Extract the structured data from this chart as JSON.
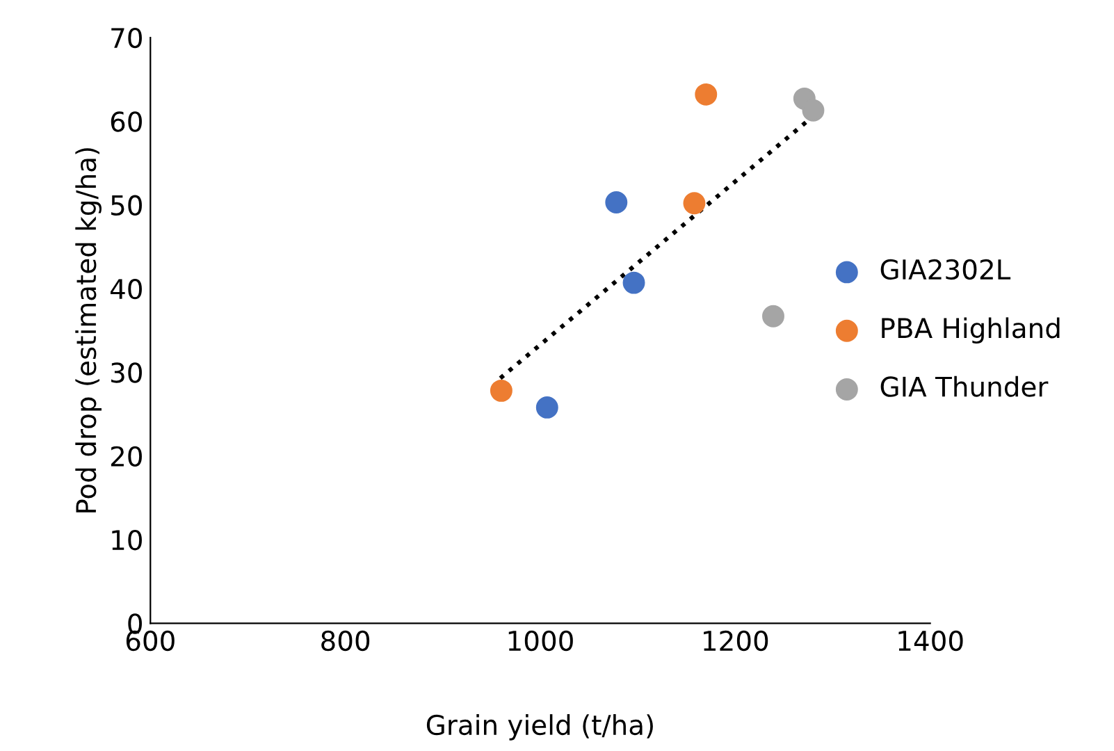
{
  "chart_data": {
    "type": "scatter",
    "xlabel": "Grain yield (t/ha)",
    "ylabel": "Pod drop (estimated kg/ha)",
    "xlim": [
      600,
      1400
    ],
    "xticks": [
      600,
      800,
      1000,
      1200,
      1400
    ],
    "ylim": [
      0,
      70
    ],
    "yticks": [
      0,
      10,
      20,
      30,
      40,
      50,
      60,
      70
    ],
    "grid": false,
    "legend": "right",
    "marker": "circle",
    "series": [
      {
        "name": "GIA2302L",
        "color": "#4472c4",
        "x": [
          1078,
          1096,
          1007
        ],
        "values": [
          50.3,
          40.7,
          25.8
        ]
      },
      {
        "name": "PBA Highland",
        "color": "#ed7d31",
        "x": [
          1170,
          1158,
          960
        ],
        "values": [
          63.2,
          50.2,
          27.8
        ]
      },
      {
        "name": "GIA Thunder",
        "color": "#a5a5a5",
        "x": [
          1239,
          1271,
          1280
        ],
        "values": [
          36.7,
          62.7,
          61.3
        ]
      },
      {
        "type": "line",
        "color": "#000000",
        "line_style": "dotted",
        "marker": "none",
        "x": [
          959,
          1281
        ],
        "values": [
          29.3,
          60.7
        ]
      }
    ]
  }
}
